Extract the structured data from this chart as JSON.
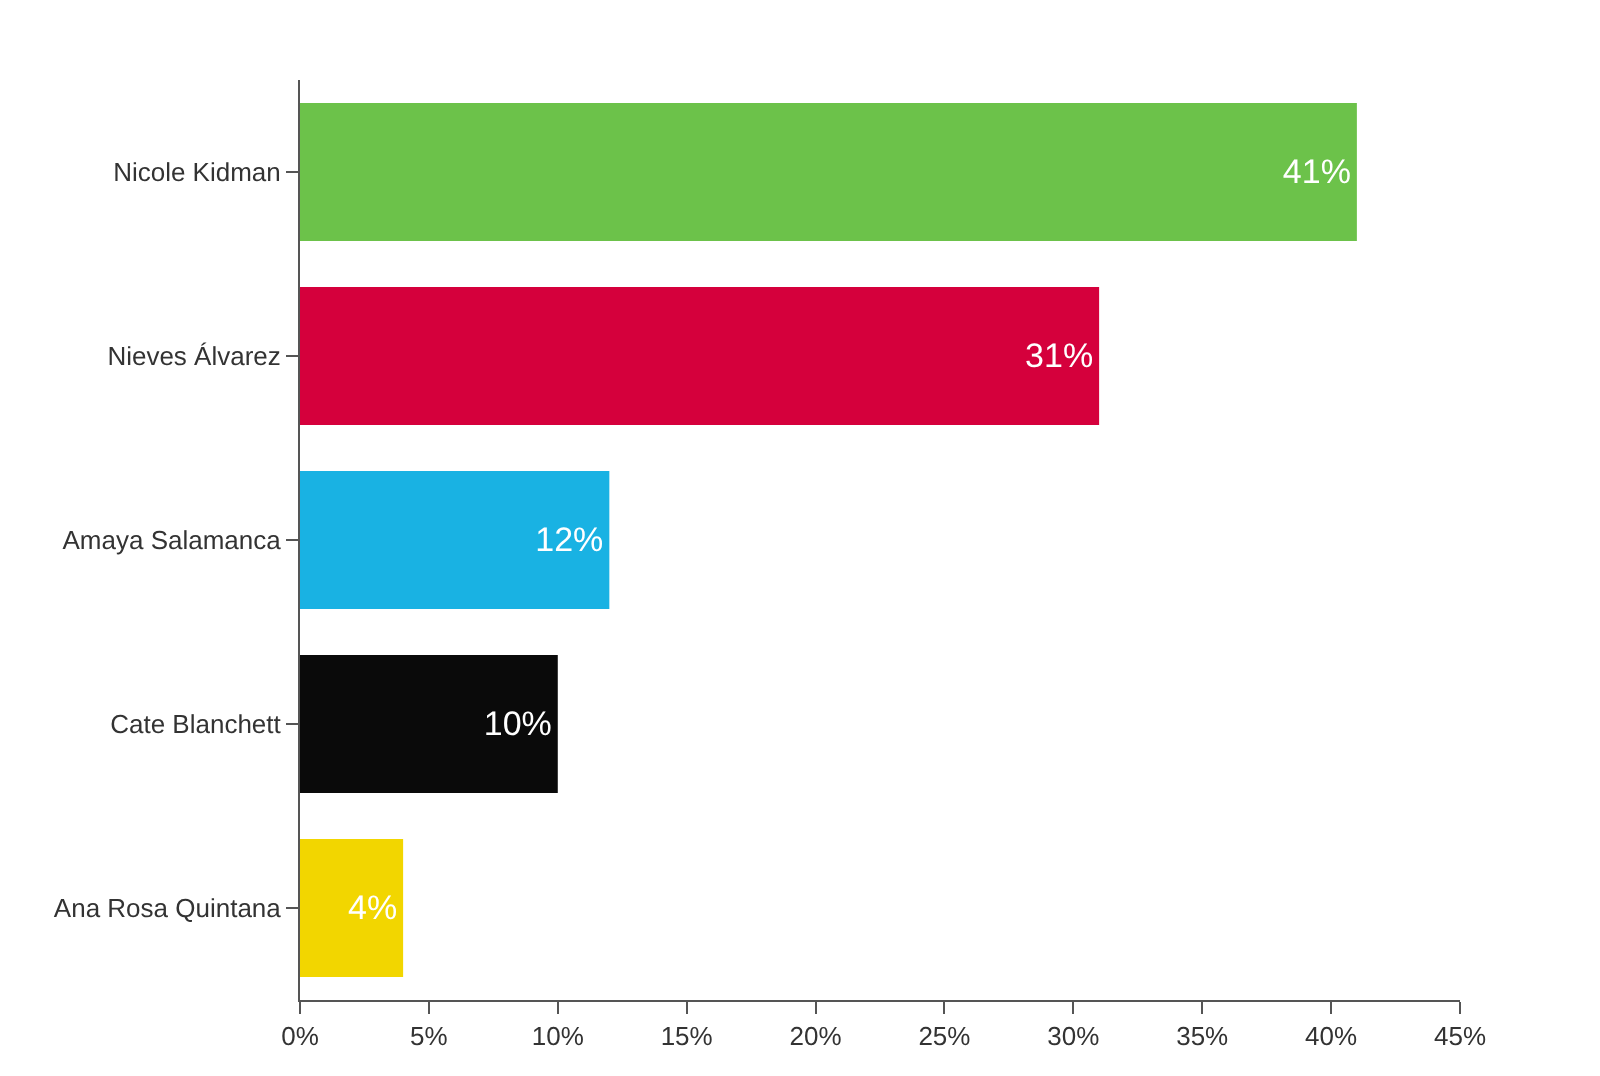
{
  "chart_data": {
    "type": "bar",
    "orientation": "horizontal",
    "categories": [
      "Nicole Kidman",
      "Nieves Álvarez",
      "Amaya Salamanca",
      "Cate Blanchett",
      "Ana Rosa Quintana"
    ],
    "values": [
      41,
      31,
      12,
      10,
      4
    ],
    "colors": [
      "#6cc24a",
      "#d5003c",
      "#19b2e3",
      "#0a0a0a",
      "#f2d600"
    ],
    "value_labels": [
      "41%",
      "31%",
      "12%",
      "10%",
      "4%"
    ],
    "xlim": [
      0,
      45
    ],
    "xticks": [
      {
        "value": 0,
        "label": "0%"
      },
      {
        "value": 5,
        "label": "5%"
      },
      {
        "value": 10,
        "label": "10%"
      },
      {
        "value": 15,
        "label": "15%"
      },
      {
        "value": 20,
        "label": "20%"
      },
      {
        "value": 25,
        "label": "25%"
      },
      {
        "value": 30,
        "label": "30%"
      },
      {
        "value": 35,
        "label": "35%"
      },
      {
        "value": 40,
        "label": "40%"
      },
      {
        "value": 45,
        "label": "45%"
      }
    ]
  }
}
